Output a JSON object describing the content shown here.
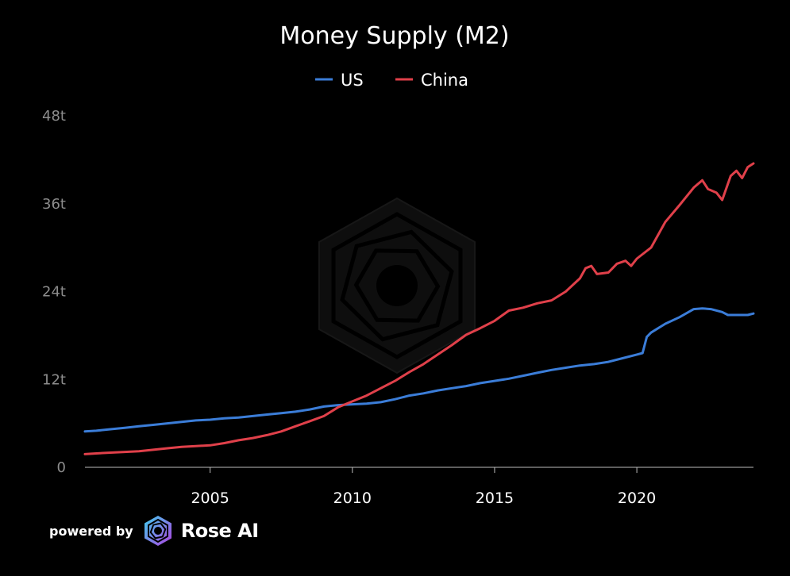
{
  "chart_data": {
    "type": "line",
    "title": "Money Supply (M2)",
    "legend_position": "top-center",
    "xlim": [
      2000.6,
      2024.1
    ],
    "ylim": [
      0,
      48
    ],
    "y_ticks": [
      0,
      12,
      24,
      36,
      48
    ],
    "y_tick_labels": [
      "0",
      "12t",
      "24t",
      "36t",
      "48t"
    ],
    "x_ticks": [
      2005,
      2010,
      2015,
      2020
    ],
    "x_tick_labels": [
      "2005",
      "2010",
      "2015",
      "2020"
    ],
    "grid": false,
    "series": [
      {
        "name": "US",
        "color": "#3b7dd8",
        "points": [
          [
            2000.6,
            4.9
          ],
          [
            2001.0,
            5.0
          ],
          [
            2001.5,
            5.2
          ],
          [
            2002.0,
            5.4
          ],
          [
            2002.5,
            5.6
          ],
          [
            2003.0,
            5.8
          ],
          [
            2003.5,
            6.0
          ],
          [
            2004.0,
            6.2
          ],
          [
            2004.5,
            6.4
          ],
          [
            2005.0,
            6.5
          ],
          [
            2005.5,
            6.7
          ],
          [
            2006.0,
            6.8
          ],
          [
            2006.5,
            7.0
          ],
          [
            2007.0,
            7.2
          ],
          [
            2007.5,
            7.4
          ],
          [
            2008.0,
            7.6
          ],
          [
            2008.5,
            7.9
          ],
          [
            2009.0,
            8.3
          ],
          [
            2009.5,
            8.5
          ],
          [
            2010.0,
            8.6
          ],
          [
            2010.5,
            8.7
          ],
          [
            2011.0,
            8.9
          ],
          [
            2011.5,
            9.3
          ],
          [
            2012.0,
            9.8
          ],
          [
            2012.5,
            10.1
          ],
          [
            2013.0,
            10.5
          ],
          [
            2013.5,
            10.8
          ],
          [
            2014.0,
            11.1
          ],
          [
            2014.5,
            11.5
          ],
          [
            2015.0,
            11.8
          ],
          [
            2015.5,
            12.1
          ],
          [
            2016.0,
            12.5
          ],
          [
            2016.5,
            12.9
          ],
          [
            2017.0,
            13.3
          ],
          [
            2017.5,
            13.6
          ],
          [
            2018.0,
            13.9
          ],
          [
            2018.5,
            14.1
          ],
          [
            2019.0,
            14.4
          ],
          [
            2019.5,
            14.9
          ],
          [
            2020.0,
            15.4
          ],
          [
            2020.2,
            15.6
          ],
          [
            2020.35,
            17.8
          ],
          [
            2020.5,
            18.4
          ],
          [
            2021.0,
            19.6
          ],
          [
            2021.5,
            20.5
          ],
          [
            2022.0,
            21.6
          ],
          [
            2022.3,
            21.7
          ],
          [
            2022.6,
            21.6
          ],
          [
            2023.0,
            21.2
          ],
          [
            2023.2,
            20.8
          ],
          [
            2023.5,
            20.8
          ],
          [
            2023.9,
            20.8
          ],
          [
            2024.1,
            21.0
          ]
        ]
      },
      {
        "name": "China",
        "color": "#e0404a",
        "points": [
          [
            2000.6,
            1.8
          ],
          [
            2001.0,
            1.9
          ],
          [
            2001.5,
            2.0
          ],
          [
            2002.0,
            2.1
          ],
          [
            2002.5,
            2.2
          ],
          [
            2003.0,
            2.4
          ],
          [
            2003.5,
            2.6
          ],
          [
            2004.0,
            2.8
          ],
          [
            2004.5,
            2.9
          ],
          [
            2005.0,
            3.0
          ],
          [
            2005.5,
            3.3
          ],
          [
            2006.0,
            3.7
          ],
          [
            2006.5,
            4.0
          ],
          [
            2007.0,
            4.4
          ],
          [
            2007.5,
            4.9
          ],
          [
            2008.0,
            5.6
          ],
          [
            2008.5,
            6.3
          ],
          [
            2009.0,
            7.0
          ],
          [
            2009.5,
            8.2
          ],
          [
            2010.0,
            9.0
          ],
          [
            2010.5,
            9.8
          ],
          [
            2011.0,
            10.8
          ],
          [
            2011.5,
            11.8
          ],
          [
            2012.0,
            13.0
          ],
          [
            2012.5,
            14.1
          ],
          [
            2013.0,
            15.4
          ],
          [
            2013.5,
            16.7
          ],
          [
            2014.0,
            18.1
          ],
          [
            2014.5,
            19.0
          ],
          [
            2015.0,
            20.0
          ],
          [
            2015.5,
            21.4
          ],
          [
            2016.0,
            21.8
          ],
          [
            2016.5,
            22.4
          ],
          [
            2017.0,
            22.8
          ],
          [
            2017.5,
            24.0
          ],
          [
            2018.0,
            25.8
          ],
          [
            2018.2,
            27.2
          ],
          [
            2018.4,
            27.5
          ],
          [
            2018.6,
            26.4
          ],
          [
            2019.0,
            26.6
          ],
          [
            2019.3,
            27.8
          ],
          [
            2019.6,
            28.2
          ],
          [
            2019.8,
            27.5
          ],
          [
            2020.0,
            28.5
          ],
          [
            2020.5,
            30.0
          ],
          [
            2021.0,
            33.5
          ],
          [
            2021.5,
            35.8
          ],
          [
            2022.0,
            38.2
          ],
          [
            2022.3,
            39.2
          ],
          [
            2022.5,
            38.0
          ],
          [
            2022.8,
            37.5
          ],
          [
            2023.0,
            36.5
          ],
          [
            2023.3,
            39.8
          ],
          [
            2023.5,
            40.5
          ],
          [
            2023.7,
            39.5
          ],
          [
            2023.9,
            41.0
          ],
          [
            2024.1,
            41.5
          ]
        ]
      }
    ]
  },
  "footer": {
    "powered_by": "powered by",
    "brand_name": "Rose AI"
  }
}
